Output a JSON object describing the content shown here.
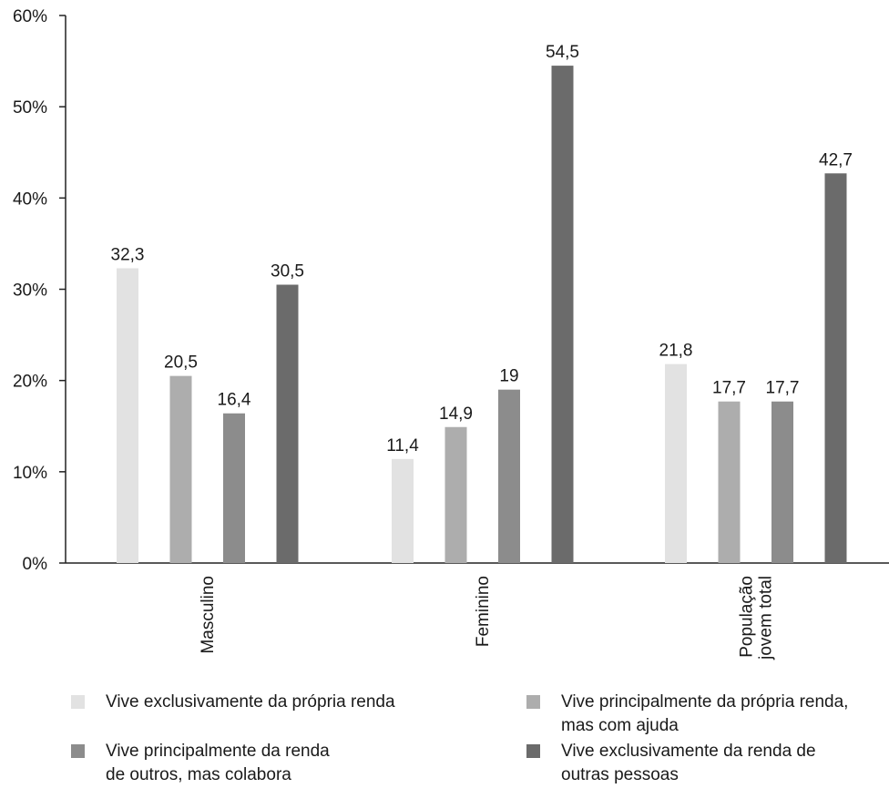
{
  "chart_data": {
    "type": "bar",
    "categories": [
      "Masculino",
      "Feminino",
      "População\njovem total"
    ],
    "series": [
      {
        "name": "Vive exclusivamente da própria renda",
        "color": "#e2e2e2",
        "values": [
          32.3,
          11.4,
          21.8
        ],
        "labels": [
          "32,3",
          "11,4",
          "21,8"
        ]
      },
      {
        "name": "Vive principalmente da própria renda,\nmas com ajuda",
        "color": "#adadad",
        "values": [
          20.5,
          14.9,
          17.7
        ],
        "labels": [
          "20,5",
          "14,9",
          "17,7"
        ]
      },
      {
        "name": "Vive principalmente da renda\nde outros, mas colabora",
        "color": "#8c8c8c",
        "values": [
          16.4,
          19,
          17.7
        ],
        "labels": [
          "16,4",
          "19",
          "17,7"
        ]
      },
      {
        "name": "Vive exclusivamente da renda de\noutras pessoas",
        "color": "#6b6b6b",
        "values": [
          30.5,
          54.5,
          42.7
        ],
        "labels": [
          "30,5",
          "54,5",
          "42,7"
        ]
      }
    ],
    "y_ticks": [
      "0%",
      "10%",
      "20%",
      "30%",
      "40%",
      "50%",
      "60%"
    ],
    "ylim": [
      0,
      60
    ],
    "legend_position": "bottom",
    "grid": false
  }
}
